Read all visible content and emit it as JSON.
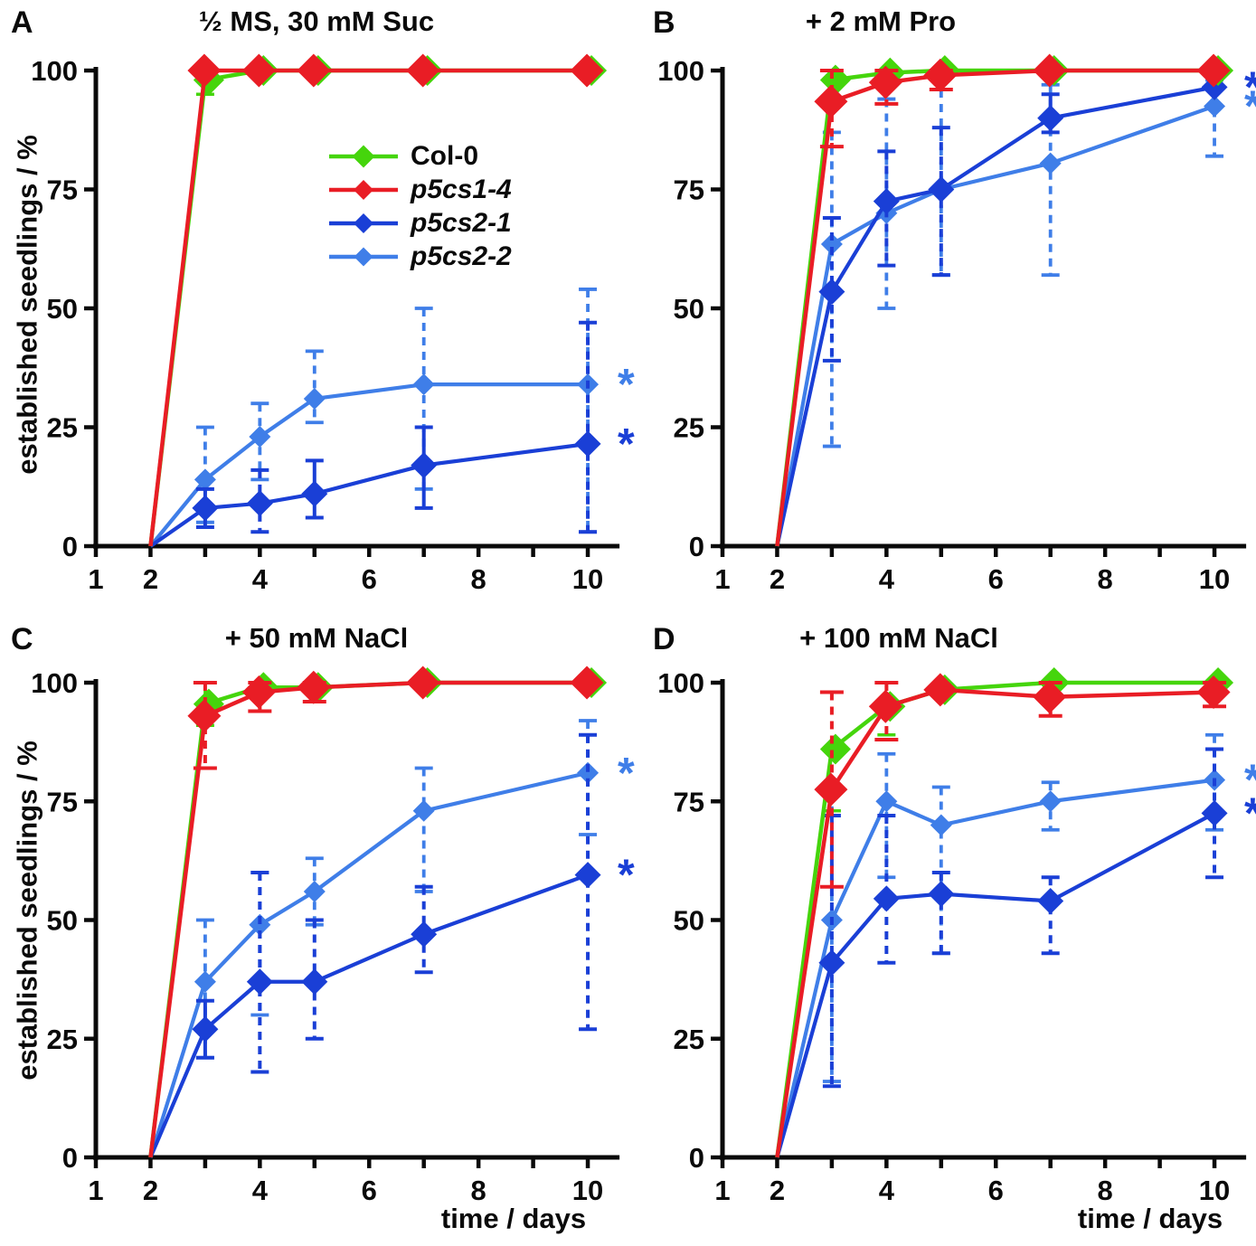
{
  "figure": {
    "background": "#ffffff",
    "y_axis_title": "established seedlings / %",
    "x_axis_title": "time / days",
    "x_tick_labels": [
      1,
      2,
      4,
      6,
      8,
      10
    ],
    "x_minor_ticks": [
      3,
      5,
      7,
      9
    ],
    "y_tick_labels": [
      0,
      25,
      50,
      75,
      100
    ],
    "significance_symbol": "*"
  },
  "legend": {
    "items": [
      {
        "label": "Col-0",
        "color": "#45D50C",
        "italic": false
      },
      {
        "label": "p5cs1-4",
        "color": "#E91D25",
        "italic": true
      },
      {
        "label": "p5cs2-1",
        "color": "#1A3FD6",
        "italic": true
      },
      {
        "label": "p5cs2-2",
        "color": "#3F7EE8",
        "italic": true
      }
    ]
  },
  "chart_data": [
    {
      "type": "line",
      "panel_label": "A",
      "title": "½ MS, 30 mM Suc",
      "ylabel": "established seedlings / %",
      "xlabel": "time / days",
      "x_days": [
        2,
        3,
        4,
        5,
        7,
        10
      ],
      "xlim": [
        1,
        10.6
      ],
      "ylim": [
        0,
        100
      ],
      "grid": false,
      "series": [
        {
          "name": "Col-0",
          "values": [
            0,
            98,
            100,
            100,
            100,
            100
          ],
          "errors": [
            null,
            [
              95,
              100,
              0
            ],
            null,
            null,
            null,
            null
          ]
        },
        {
          "name": "p5cs1-4",
          "values": [
            0,
            100,
            100,
            100,
            100,
            100
          ],
          "errors": [
            null,
            null,
            null,
            null,
            null,
            null
          ]
        },
        {
          "name": "p5cs2-1",
          "values": [
            0,
            8,
            9,
            11,
            17,
            21.5
          ],
          "errors": [
            null,
            [
              4,
              12,
              0
            ],
            [
              3,
              16,
              1
            ],
            [
              6,
              18,
              0
            ],
            [
              8,
              25,
              0
            ],
            [
              3,
              47,
              1
            ]
          ],
          "significant": true
        },
        {
          "name": "p5cs2-2",
          "values": [
            0,
            14,
            23,
            31,
            34,
            34
          ],
          "errors": [
            null,
            [
              5,
              25,
              1
            ],
            [
              14,
              30,
              1
            ],
            [
              26,
              41,
              1
            ],
            [
              12,
              50,
              1
            ],
            [
              3,
              54,
              1
            ]
          ],
          "significant": true
        }
      ],
      "annotations": [
        {
          "symbol": "*",
          "series": "p5cs2-2",
          "day": 10,
          "value": 34
        },
        {
          "symbol": "*",
          "series": "p5cs2-1",
          "day": 10,
          "value": 21.5
        }
      ],
      "has_legend": true,
      "show_ylabel": true,
      "show_xlabel": false
    },
    {
      "type": "line",
      "panel_label": "B",
      "title": "+ 2 mM Pro",
      "ylabel": "established seedlings / %",
      "xlabel": "time / days",
      "x_days": [
        2,
        3,
        4,
        5,
        7,
        10
      ],
      "xlim": [
        1,
        10.6
      ],
      "ylim": [
        0,
        100
      ],
      "grid": false,
      "series": [
        {
          "name": "Col-0",
          "values": [
            0,
            98,
            99.5,
            100,
            100,
            100
          ],
          "errors": [
            null,
            [
              94,
              100,
              0
            ],
            null,
            null,
            null,
            null
          ]
        },
        {
          "name": "p5cs1-4",
          "values": [
            0,
            93.5,
            97.5,
            99,
            100,
            100
          ],
          "errors": [
            null,
            [
              84,
              100,
              1
            ],
            [
              93,
              100,
              1
            ],
            [
              96,
              100,
              1
            ],
            null,
            null
          ]
        },
        {
          "name": "p5cs2-1",
          "values": [
            0,
            53.5,
            72.5,
            75,
            90,
            96.5
          ],
          "errors": [
            null,
            [
              39,
              69,
              1
            ],
            [
              59,
              83,
              1
            ],
            [
              57,
              88,
              1
            ],
            [
              87,
              95,
              0
            ],
            null
          ],
          "significant": true
        },
        {
          "name": "p5cs2-2",
          "values": [
            0,
            63.5,
            70,
            75,
            80.5,
            92.5
          ],
          "errors": [
            null,
            [
              21,
              87,
              1
            ],
            [
              50,
              94,
              1
            ],
            [
              57,
              96,
              1
            ],
            [
              57,
              97,
              1
            ],
            [
              82,
              98,
              1
            ]
          ],
          "significant": true
        }
      ],
      "annotations": [
        {
          "symbol": "*",
          "series": "p5cs2-1",
          "day": 10,
          "value": 96.5
        },
        {
          "symbol": "*",
          "series": "p5cs2-2",
          "day": 10,
          "value": 92.5
        }
      ],
      "has_legend": false,
      "show_ylabel": false,
      "show_xlabel": false
    },
    {
      "type": "line",
      "panel_label": "C",
      "title": "+ 50 mM NaCl",
      "ylabel": "established seedlings / %",
      "xlabel": "time / days",
      "x_days": [
        2,
        3,
        4,
        5,
        7,
        10
      ],
      "xlim": [
        1,
        10.6
      ],
      "ylim": [
        0,
        100
      ],
      "grid": false,
      "series": [
        {
          "name": "Col-0",
          "values": [
            0,
            95.5,
            99,
            99,
            100,
            100
          ],
          "errors": [
            null,
            [
              91,
              100,
              0
            ],
            null,
            null,
            null,
            null
          ]
        },
        {
          "name": "p5cs1-4",
          "values": [
            0,
            93,
            98,
            99,
            100,
            100
          ],
          "errors": [
            null,
            [
              82,
              100,
              1
            ],
            [
              94,
              100,
              0
            ],
            [
              96,
              100,
              0
            ],
            null,
            null
          ]
        },
        {
          "name": "p5cs2-1",
          "values": [
            0,
            27,
            37,
            37,
            47,
            59.5
          ],
          "errors": [
            null,
            [
              21,
              33,
              0
            ],
            [
              18,
              60,
              1
            ],
            [
              25,
              50,
              1
            ],
            [
              39,
              57,
              1
            ],
            [
              27,
              89,
              1
            ]
          ],
          "significant": true
        },
        {
          "name": "p5cs2-2",
          "values": [
            0,
            37,
            49,
            56,
            73,
            81
          ],
          "errors": [
            null,
            [
              21,
              50,
              1
            ],
            [
              30,
              60,
              1
            ],
            [
              49,
              63,
              1
            ],
            [
              56,
              82,
              1
            ],
            [
              68,
              92,
              1
            ]
          ],
          "significant": true
        }
      ],
      "annotations": [
        {
          "symbol": "*",
          "series": "p5cs2-2",
          "day": 10,
          "value": 81
        },
        {
          "symbol": "*",
          "series": "p5cs2-1",
          "day": 10,
          "value": 59.5
        }
      ],
      "has_legend": false,
      "show_ylabel": true,
      "show_xlabel": true
    },
    {
      "type": "line",
      "panel_label": "D",
      "title": "+ 100 mM NaCl",
      "ylabel": "established seedlings / %",
      "xlabel": "time / days",
      "x_days": [
        2,
        3,
        4,
        5,
        7,
        10
      ],
      "xlim": [
        1,
        10.6
      ],
      "ylim": [
        0,
        100
      ],
      "grid": false,
      "series": [
        {
          "name": "Col-0",
          "values": [
            0,
            86,
            95,
            98.5,
            100,
            100
          ],
          "errors": [
            null,
            [
              73,
              98,
              1
            ],
            [
              89,
              100,
              1
            ],
            null,
            null,
            null
          ]
        },
        {
          "name": "p5cs1-4",
          "values": [
            0,
            77.5,
            95,
            98.5,
            97,
            98
          ],
          "errors": [
            null,
            [
              57,
              98,
              1
            ],
            [
              88,
              100,
              1
            ],
            null,
            [
              93,
              100,
              0
            ],
            [
              95,
              100,
              0
            ]
          ]
        },
        {
          "name": "p5cs2-1",
          "values": [
            0,
            41,
            54.5,
            55.5,
            54,
            72.5
          ],
          "errors": [
            null,
            [
              15,
              72,
              1
            ],
            [
              41,
              72,
              1
            ],
            [
              43,
              60,
              1
            ],
            [
              43,
              59,
              1
            ],
            [
              59,
              86,
              1
            ]
          ],
          "significant": true
        },
        {
          "name": "p5cs2-2",
          "values": [
            0,
            50,
            75,
            70,
            75,
            79.5
          ],
          "errors": [
            null,
            [
              16,
              77,
              1
            ],
            [
              59,
              85,
              1
            ],
            [
              43,
              78,
              1
            ],
            [
              69,
              79,
              1
            ],
            [
              69,
              89,
              1
            ]
          ],
          "significant": true
        }
      ],
      "annotations": [
        {
          "symbol": "*",
          "series": "p5cs2-2",
          "day": 10,
          "value": 79.5
        },
        {
          "symbol": "*",
          "series": "p5cs2-1",
          "day": 10,
          "value": 72.5
        }
      ],
      "has_legend": false,
      "show_ylabel": false,
      "show_xlabel": true
    }
  ]
}
